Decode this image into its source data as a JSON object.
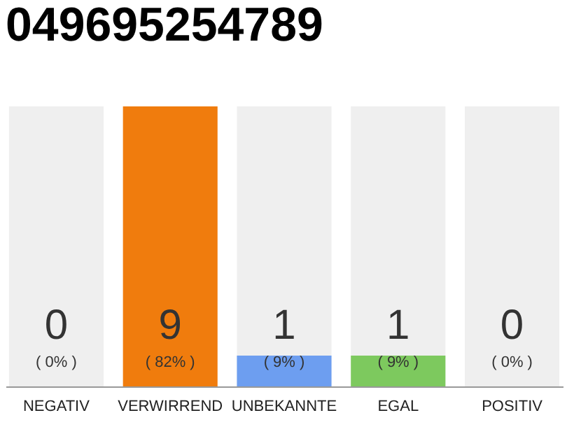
{
  "chart_data": {
    "type": "bar",
    "title": "049695254789",
    "categories": [
      "NEGATIV",
      "VERWIRREND",
      "UNBEKANNTE",
      "EGAL",
      "POSITIV"
    ],
    "values": [
      0,
      82,
      9,
      9,
      0
    ],
    "colors": [
      "#d9d9d9",
      "#f07c0d",
      "#6d9ef0",
      "#7dc95e",
      "#d9d9d9"
    ],
    "value_labels": [
      "( 0% )",
      "( 82% )",
      "( 9% )",
      "( 9% )",
      "( 0% )"
    ],
    "annotations": [
      "0",
      "9",
      "1",
      "1",
      "0"
    ],
    "bands": [
      {
        "axis": "x",
        "from": "NEGATIV",
        "to": "NEGATIV",
        "color": "#efefef"
      },
      {
        "axis": "x",
        "from": "UNBEKANNTE",
        "to": "UNBEKANNTE",
        "color": "#efefef"
      },
      {
        "axis": "x",
        "from": "EGAL",
        "to": "EGAL",
        "color": "#efefef"
      },
      {
        "axis": "x",
        "from": "POSITIV",
        "to": "POSITIV",
        "color": "#efefef"
      }
    ]
  }
}
